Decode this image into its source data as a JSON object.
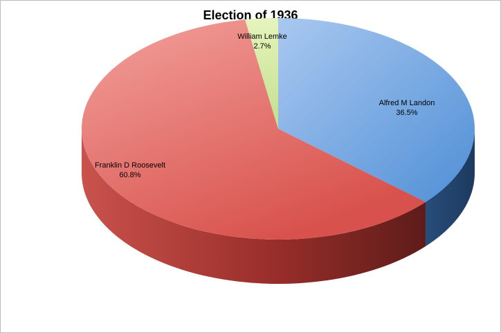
{
  "chart_data": {
    "type": "pie",
    "title": "Election of 1936",
    "slices": [
      {
        "name": "Alfred M Landon",
        "value": 36.5,
        "label": "36.5%",
        "color": "#5b9bd5"
      },
      {
        "name": "Franklin D Roosevelt",
        "value": 60.8,
        "label": "60.8%",
        "color": "#d9534f"
      },
      {
        "name": "William Lemke",
        "value": 2.7,
        "label": "2.7%",
        "color": "#c5e08a"
      }
    ],
    "style": "3d"
  }
}
